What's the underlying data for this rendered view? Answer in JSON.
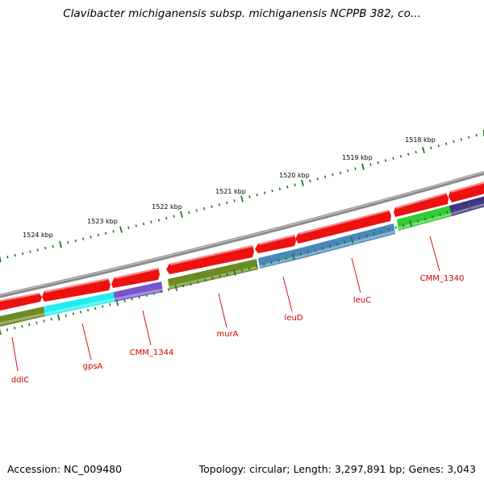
{
  "title": "Clavibacter michiganensis subsp. michiganensis NCPPB 382, co...",
  "footer": {
    "accession": "Accession: NC_009480",
    "topology": "Topology: circular; Length: 3,297,891 bp; Genes: 3,043"
  },
  "kbp_labels": [
    "1524 kbp",
    "1523 kbp",
    "1522 kbp",
    "1521 kbp",
    "1520 kbp",
    "1519 kbp",
    "1518 kbp"
  ],
  "gene_labels": [
    "ddlC",
    "gpsA",
    "CMM_1344",
    "murA",
    "leuD",
    "leuC",
    "CMM_1340"
  ],
  "colors": {
    "backbone": "#8a8a8a",
    "forward_strand": "#ee1111",
    "tick": "#1e7a1e",
    "label": "#cc0000",
    "ddlC": "#6b8a22",
    "gpsA": "#22eeee",
    "CMM_1344": "#7755cc",
    "murA": "#6b8a22",
    "leuD": "#4a88bb",
    "leuC": "#4a88bb",
    "CMM_1340": "#33cc33",
    "dark_gene": "#443388"
  }
}
